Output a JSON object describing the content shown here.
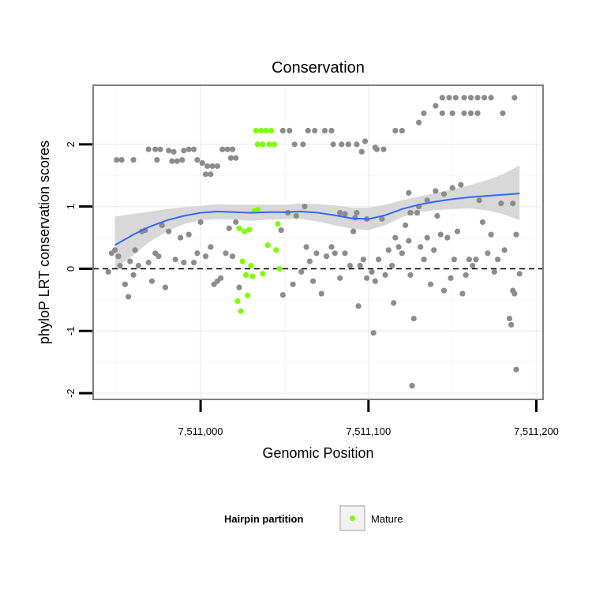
{
  "chart_data": {
    "type": "scatter",
    "title": "Conservation",
    "xlabel": "Genomic Position",
    "ylabel": "phyloP LRT conservation scores",
    "xlim": [
      7510936,
      7511204
    ],
    "ylim": [
      -2.1,
      2.95
    ],
    "x_ticks": [
      7511000,
      7511100,
      7511200
    ],
    "x_tick_labels": [
      "7,511,000",
      "7,511,100",
      "7,511,200"
    ],
    "y_ticks": [
      -2,
      -1,
      0,
      1,
      2
    ],
    "y_tick_labels": [
      "-2",
      "-1",
      "0",
      "1",
      "2"
    ],
    "reference_line": {
      "y": 0,
      "style": "dashed",
      "color": "#000000"
    },
    "grid": true,
    "legend": {
      "title": "Hairpin partition",
      "placement": "bottom",
      "entries": [
        {
          "label": "Mature",
          "color": "#7FFF00"
        }
      ]
    },
    "colors": {
      "other": "#8C8C8C",
      "mature": "#7FFF00",
      "smooth": "#3366FF",
      "ribbon": "#D4D4D4"
    },
    "smooth": {
      "x": [
        7510949,
        7510960,
        7510970,
        7510980,
        7510990,
        7511000,
        7511010,
        7511020,
        7511030,
        7511040,
        7511050,
        7511060,
        7511070,
        7511080,
        7511090,
        7511100,
        7511110,
        7511120,
        7511130,
        7511140,
        7511150,
        7511160,
        7511170,
        7511180,
        7511190
      ],
      "y": [
        0.38,
        0.55,
        0.68,
        0.78,
        0.85,
        0.9,
        0.92,
        0.91,
        0.9,
        0.91,
        0.91,
        0.92,
        0.9,
        0.86,
        0.81,
        0.8,
        0.86,
        0.96,
        1.03,
        1.08,
        1.12,
        1.15,
        1.17,
        1.19,
        1.21
      ],
      "lower": [
        0.0,
        0.22,
        0.44,
        0.6,
        0.72,
        0.78,
        0.8,
        0.79,
        0.77,
        0.79,
        0.8,
        0.8,
        0.76,
        0.7,
        0.64,
        0.62,
        0.7,
        0.83,
        0.91,
        0.94,
        0.96,
        0.97,
        0.94,
        0.88,
        0.78
      ],
      "upper": [
        0.84,
        0.88,
        0.92,
        0.96,
        0.99,
        1.01,
        1.04,
        1.03,
        1.03,
        1.03,
        1.03,
        1.05,
        1.04,
        1.02,
        0.98,
        0.98,
        1.03,
        1.1,
        1.16,
        1.22,
        1.28,
        1.34,
        1.42,
        1.52,
        1.66
      ]
    },
    "series": [
      {
        "name": "Mature",
        "points": [
          [
            7511033,
            2.22
          ],
          [
            7511036,
            2.22
          ],
          [
            7511039,
            2.22
          ],
          [
            7511042,
            2.22
          ],
          [
            7511034,
            2.0
          ],
          [
            7511037,
            2.0
          ],
          [
            7511041,
            2.0
          ],
          [
            7511044,
            2.0
          ],
          [
            7511032,
            0.93
          ],
          [
            7511034,
            0.95
          ],
          [
            7511046,
            0.72
          ],
          [
            7511023,
            0.65
          ],
          [
            7511026,
            0.6
          ],
          [
            7511029,
            0.63
          ],
          [
            7511040,
            0.38
          ],
          [
            7511045,
            0.3
          ],
          [
            7511025,
            0.12
          ],
          [
            7511030,
            0.05
          ],
          [
            7511047,
            0.0
          ],
          [
            7511027,
            -0.1
          ],
          [
            7511031,
            -0.12
          ],
          [
            7511037,
            -0.08
          ],
          [
            7511022,
            -0.52
          ],
          [
            7511028,
            -0.43
          ],
          [
            7511024,
            -0.68
          ]
        ]
      },
      {
        "name": "",
        "points": [
          [
            7510950,
            1.75
          ],
          [
            7510953,
            1.75
          ],
          [
            7510960,
            1.75
          ],
          [
            7510969,
            1.92
          ],
          [
            7510973,
            1.92
          ],
          [
            7510976,
            1.92
          ],
          [
            7510981,
            1.9
          ],
          [
            7510984,
            1.88
          ],
          [
            7510990,
            1.9
          ],
          [
            7510993,
            1.92
          ],
          [
            7510996,
            1.92
          ],
          [
            7511013,
            1.92
          ],
          [
            7511016,
            1.92
          ],
          [
            7511019,
            1.92
          ],
          [
            7510974,
            1.75
          ],
          [
            7510983,
            1.73
          ],
          [
            7510986,
            1.73
          ],
          [
            7510989,
            1.75
          ],
          [
            7510998,
            1.75
          ],
          [
            7511001,
            1.7
          ],
          [
            7511004,
            1.65
          ],
          [
            7511007,
            1.65
          ],
          [
            7511010,
            1.65
          ],
          [
            7511003,
            1.52
          ],
          [
            7511006,
            1.52
          ],
          [
            7511018,
            1.78
          ],
          [
            7511021,
            1.78
          ],
          [
            7511049,
            2.22
          ],
          [
            7511053,
            2.22
          ],
          [
            7511064,
            2.22
          ],
          [
            7511068,
            2.22
          ],
          [
            7511074,
            2.22
          ],
          [
            7511078,
            2.22
          ],
          [
            7511116,
            2.22
          ],
          [
            7511120,
            2.22
          ],
          [
            7511056,
            2.0
          ],
          [
            7511061,
            2.0
          ],
          [
            7511079,
            2.0
          ],
          [
            7511084,
            2.0
          ],
          [
            7511088,
            2.0
          ],
          [
            7511093,
            2.0
          ],
          [
            7511098,
            2.05
          ],
          [
            7511105,
            1.92
          ],
          [
            7511109,
            1.92
          ],
          [
            7511096,
            1.88
          ],
          [
            7511104,
            1.95
          ],
          [
            7511130,
            2.35
          ],
          [
            7511140,
            2.62
          ],
          [
            7511144,
            2.75
          ],
          [
            7511148,
            2.75
          ],
          [
            7511152,
            2.75
          ],
          [
            7511157,
            2.75
          ],
          [
            7511161,
            2.75
          ],
          [
            7511165,
            2.75
          ],
          [
            7511169,
            2.75
          ],
          [
            7511173,
            2.75
          ],
          [
            7511187,
            2.75
          ],
          [
            7511133,
            2.5
          ],
          [
            7511144,
            2.5
          ],
          [
            7511150,
            2.5
          ],
          [
            7511157,
            2.5
          ],
          [
            7511161,
            2.5
          ],
          [
            7511165,
            2.5
          ],
          [
            7511180,
            2.5
          ],
          [
            7510945,
            -0.05
          ],
          [
            7510947,
            0.25
          ],
          [
            7510949,
            0.3
          ],
          [
            7510951,
            0.2
          ],
          [
            7510952,
            0.05
          ],
          [
            7510955,
            -0.25
          ],
          [
            7510957,
            -0.45
          ],
          [
            7510958,
            0.12
          ],
          [
            7510960,
            -0.1
          ],
          [
            7510961,
            0.3
          ],
          [
            7510963,
            0.05
          ],
          [
            7510965,
            0.6
          ],
          [
            7510967,
            0.62
          ],
          [
            7510969,
            0.1
          ],
          [
            7510971,
            -0.2
          ],
          [
            7510973,
            0.25
          ],
          [
            7510975,
            0.2
          ],
          [
            7510977,
            0.7
          ],
          [
            7510979,
            -0.3
          ],
          [
            7510981,
            0.6
          ],
          [
            7510985,
            0.15
          ],
          [
            7510988,
            0.5
          ],
          [
            7510990,
            0.1
          ],
          [
            7510993,
            0.55
          ],
          [
            7510996,
            0.1
          ],
          [
            7510998,
            0.25
          ],
          [
            7511000,
            0.75
          ],
          [
            7511003,
            0.2
          ],
          [
            7511006,
            0.35
          ],
          [
            7511008,
            -0.25
          ],
          [
            7511010,
            -0.2
          ],
          [
            7511012,
            -0.15
          ],
          [
            7511015,
            0.25
          ],
          [
            7511017,
            0.65
          ],
          [
            7511019,
            0.2
          ],
          [
            7511021,
            0.75
          ],
          [
            7511023,
            -0.3
          ],
          [
            7511048,
            0.62
          ],
          [
            7511049,
            -0.42
          ],
          [
            7511052,
            0.9
          ],
          [
            7511055,
            -0.25
          ],
          [
            7511057,
            0.85
          ],
          [
            7511060,
            -0.05
          ],
          [
            7511062,
            1.0
          ],
          [
            7511063,
            0.35
          ],
          [
            7511065,
            0.12
          ],
          [
            7511067,
            -0.2
          ],
          [
            7511069,
            0.25
          ],
          [
            7511072,
            -0.4
          ],
          [
            7511075,
            0.2
          ],
          [
            7511078,
            0.35
          ],
          [
            7511080,
            0.25
          ],
          [
            7511083,
            -0.15
          ],
          [
            7511086,
            0.25
          ],
          [
            7511089,
            0.05
          ],
          [
            7511091,
            0.6
          ],
          [
            7511093,
            0.9
          ],
          [
            7511095,
            0.05
          ],
          [
            7511097,
            0.15
          ],
          [
            7511099,
            -0.15
          ],
          [
            7511102,
            -0.05
          ],
          [
            7511104,
            -0.2
          ],
          [
            7511106,
            0.15
          ],
          [
            7511108,
            0.8
          ],
          [
            7511110,
            -0.1
          ],
          [
            7511112,
            0.3
          ],
          [
            7511114,
            0.05
          ],
          [
            7511116,
            0.5
          ],
          [
            7511118,
            0.35
          ],
          [
            7511120,
            0.25
          ],
          [
            7511122,
            0.7
          ],
          [
            7511124,
            0.45
          ],
          [
            7511125,
            -0.1
          ],
          [
            7511127,
            -0.8
          ],
          [
            7511129,
            0.9
          ],
          [
            7511131,
            0.35
          ],
          [
            7511133,
            0.15
          ],
          [
            7511135,
            0.5
          ],
          [
            7511137,
            -0.25
          ],
          [
            7511139,
            0.3
          ],
          [
            7511141,
            0.85
          ],
          [
            7511143,
            0.55
          ],
          [
            7511145,
            -0.35
          ],
          [
            7511147,
            0.5
          ],
          [
            7511149,
            -0.15
          ],
          [
            7511151,
            0.15
          ],
          [
            7511153,
            0.6
          ],
          [
            7511156,
            -0.4
          ],
          [
            7511158,
            -0.1
          ],
          [
            7511160,
            0.15
          ],
          [
            7511162,
            0.05
          ],
          [
            7511164,
            0.15
          ],
          [
            7511166,
            1.1
          ],
          [
            7511168,
            0.75
          ],
          [
            7511171,
            0.25
          ],
          [
            7511173,
            0.55
          ],
          [
            7511175,
            -0.05
          ],
          [
            7511177,
            0.15
          ],
          [
            7511179,
            1.05
          ],
          [
            7511181,
            0.3
          ],
          [
            7511184,
            -0.8
          ],
          [
            7511185,
            -0.9
          ],
          [
            7511186,
            -0.35
          ],
          [
            7511187,
            -0.4
          ],
          [
            7511188,
            0.55
          ],
          [
            7511186,
            1.05
          ],
          [
            7511188,
            -1.62
          ],
          [
            7511190,
            -0.08
          ],
          [
            7511094,
            -0.6
          ],
          [
            7511103,
            -1.03
          ],
          [
            7511115,
            -0.55
          ],
          [
            7511126,
            -1.88
          ],
          [
            7511140,
            1.25
          ],
          [
            7511145,
            1.2
          ],
          [
            7511150,
            1.3
          ],
          [
            7511155,
            1.35
          ],
          [
            7511130,
            1.0
          ],
          [
            7511135,
            1.1
          ],
          [
            7511124,
            1.22
          ],
          [
            7511125,
            0.9
          ],
          [
            7511083,
            0.9
          ],
          [
            7511086,
            0.88
          ],
          [
            7511092,
            0.82
          ],
          [
            7511099,
            0.8
          ]
        ]
      }
    ]
  }
}
